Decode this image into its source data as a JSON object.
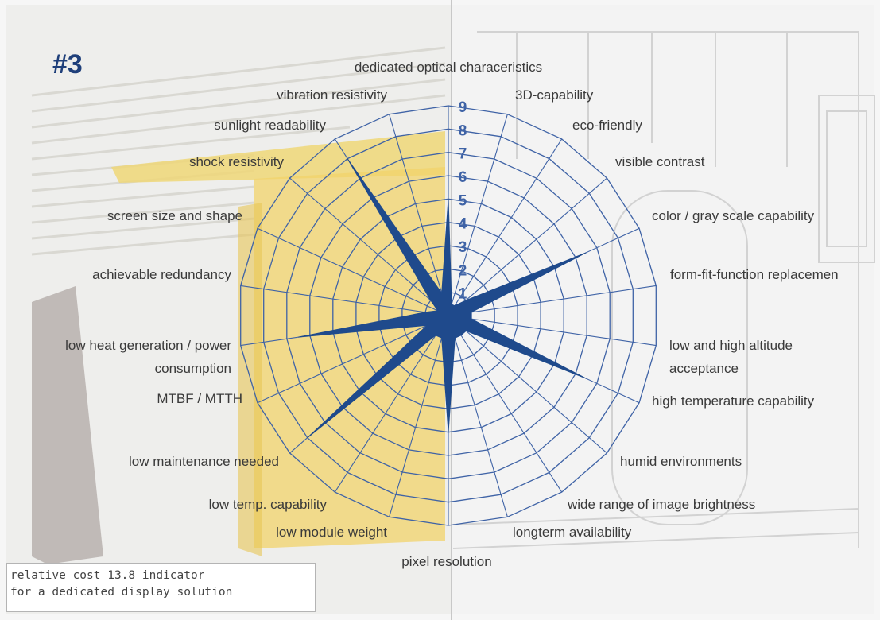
{
  "badge": "#3",
  "note": {
    "line1": "relative cost 13.8 indicator",
    "line2": "for a dedicated display solution"
  },
  "colors": {
    "fill": "#1f4a8c",
    "grid": "#3f63a6",
    "ring_label": "#3f63a6",
    "photo_yellow": "#f2d36b"
  },
  "chart_data": {
    "type": "radar",
    "title": "",
    "scale": {
      "min": 0,
      "max": 9,
      "rings": [
        1,
        2,
        3,
        4,
        5,
        6,
        7,
        8,
        9
      ]
    },
    "ring_labels": [
      "1",
      "2",
      "3",
      "4",
      "5",
      "6",
      "7",
      "8",
      "9"
    ],
    "grid": true,
    "axes": [
      "dedicated optical characeristics",
      "3D-capability",
      "eco-friendly",
      "visible contrast",
      "color / gray scale capability",
      "form-fit-function replacemen",
      "low and high altitude acceptance",
      "high temperature capability",
      "humid environments",
      "wide range of image brightness",
      "longterm availability",
      "pixel resolution",
      "low module weight",
      "low temp. capability",
      "low maintenance needed",
      "MTBF / MTTH",
      "low heat generation / power consumption",
      "achievable redundancy",
      "screen size and shape",
      "shock  resistivity",
      "sunlight readability",
      "vibration resistivity"
    ],
    "series": [
      {
        "values": [
          5,
          0.5,
          0.5,
          1,
          6.5,
          1,
          1,
          6.5,
          1,
          1,
          1,
          5,
          1,
          1,
          8,
          1,
          6.5,
          1,
          0.5,
          1,
          8,
          1
        ]
      }
    ]
  }
}
